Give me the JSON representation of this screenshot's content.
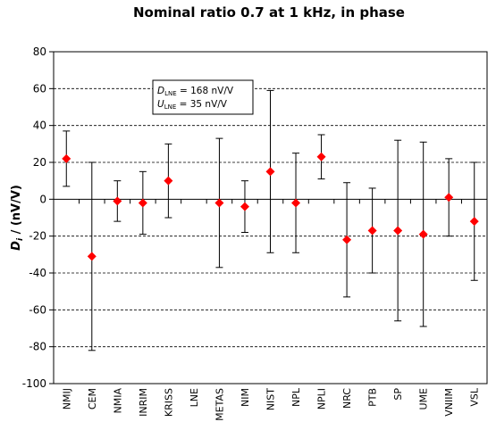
{
  "chart_data": {
    "type": "scatter",
    "title": "Nominal ratio 0.7 at 1 kHz, in phase",
    "ylabel": {
      "symbol": "D",
      "sub": "i",
      "rest": " / (nV/V)"
    },
    "ylim": [
      -100,
      80
    ],
    "yticks": [
      80,
      60,
      40,
      20,
      0,
      -20,
      -40,
      -60,
      -80,
      -100
    ],
    "grid": "horizontal-dashed",
    "legend": "none",
    "categories": [
      "NMIJ",
      "CEM",
      "NMIA",
      "INRIM",
      "KRISS",
      "LNE",
      "METAS",
      "NIM",
      "NIST",
      "NPL",
      "NPLI",
      "NRC",
      "PTB",
      "SP",
      "UME",
      "VNIIM",
      "VSL"
    ],
    "series": [
      {
        "values": [
          22,
          -31,
          -1,
          -2,
          10,
          null,
          -2,
          -4,
          15,
          -2,
          23,
          -22,
          -17,
          -17,
          -19,
          1,
          -12
        ],
        "err_high": [
          37,
          20,
          10,
          15,
          30,
          null,
          33,
          10,
          59,
          25,
          35,
          9,
          6,
          32,
          31,
          22,
          20
        ],
        "err_low": [
          7,
          -82,
          -12,
          -19,
          -10,
          null,
          -37,
          -18,
          -29,
          -29,
          11,
          -53,
          -40,
          -66,
          -69,
          -20,
          -44
        ],
        "color": "#ff0000"
      }
    ],
    "annotation": {
      "line1": {
        "symbol": "D",
        "sub": "LNE",
        "rest": " = 168 nV/V"
      },
      "line2": {
        "symbol": "U",
        "sub": "LNE",
        "rest": " = 35 nV/V"
      }
    }
  }
}
